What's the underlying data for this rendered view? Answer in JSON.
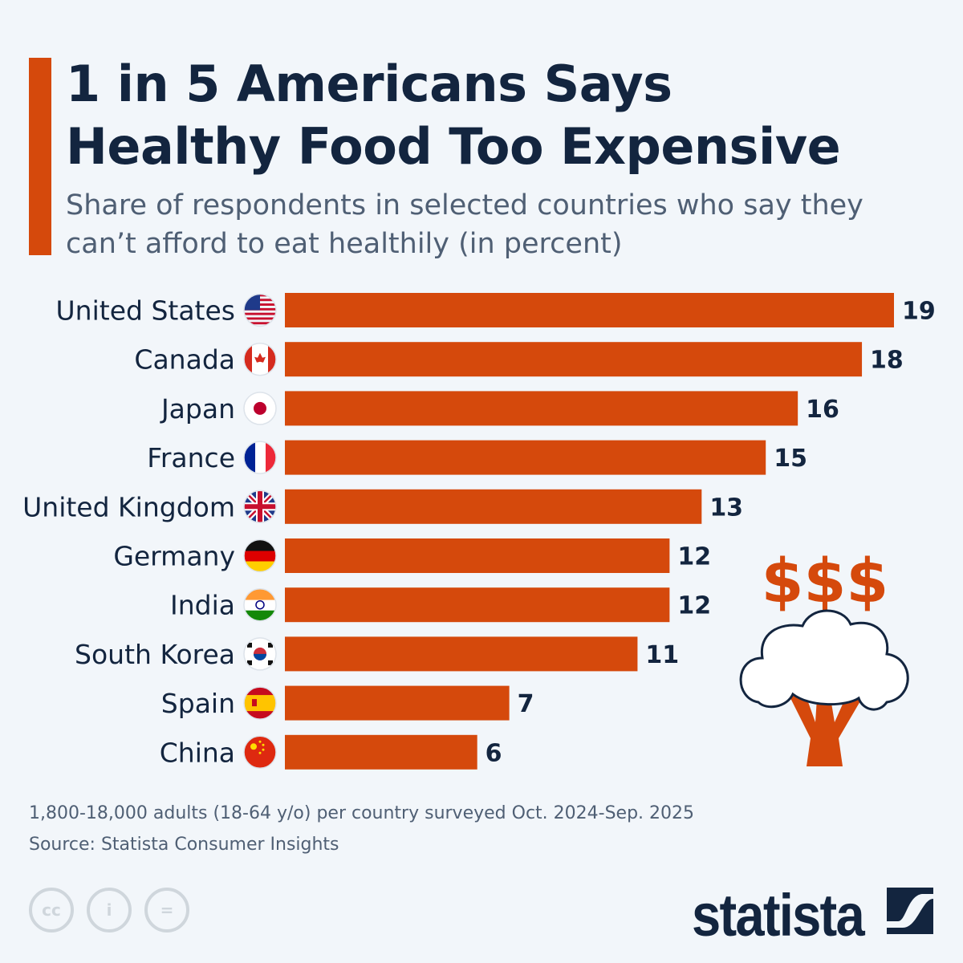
{
  "header": {
    "title_line1": "1 in 5 Americans Says",
    "title_line2": "Healthy Food Too Expensive",
    "subtitle": "Share of respondents in selected countries who say they can’t afford to eat healthily (in percent)"
  },
  "chart_data": {
    "type": "bar",
    "orientation": "horizontal",
    "categories": [
      "United States",
      "Canada",
      "Japan",
      "France",
      "United Kingdom",
      "Germany",
      "India",
      "South Korea",
      "Spain",
      "China"
    ],
    "values": [
      19,
      18,
      16,
      15,
      13,
      12,
      12,
      11,
      7,
      6
    ],
    "flag_icons": [
      "us-flag-icon",
      "canada-flag-icon",
      "japan-flag-icon",
      "france-flag-icon",
      "uk-flag-icon",
      "germany-flag-icon",
      "india-flag-icon",
      "south-korea-flag-icon",
      "spain-flag-icon",
      "china-flag-icon"
    ],
    "bar_color": "#d5490c",
    "xlim": [
      0,
      19
    ],
    "grid": false,
    "data_labels": true
  },
  "footer": {
    "note": "1,800-18,000 adults (18-64 y/o) per country surveyed Oct. 2024-Sep. 2025",
    "source": "Source: Statista Consumer Insights",
    "logo": "statista",
    "license_icons": [
      "cc-icon",
      "attribution-icon",
      "no-derivatives-icon"
    ]
  },
  "illustration": {
    "dollar_signs": "$$$",
    "icon": "broccoli-icon"
  },
  "colors": {
    "accent": "#d5490c",
    "navy": "#13253f",
    "background": "#f2f6fa"
  }
}
